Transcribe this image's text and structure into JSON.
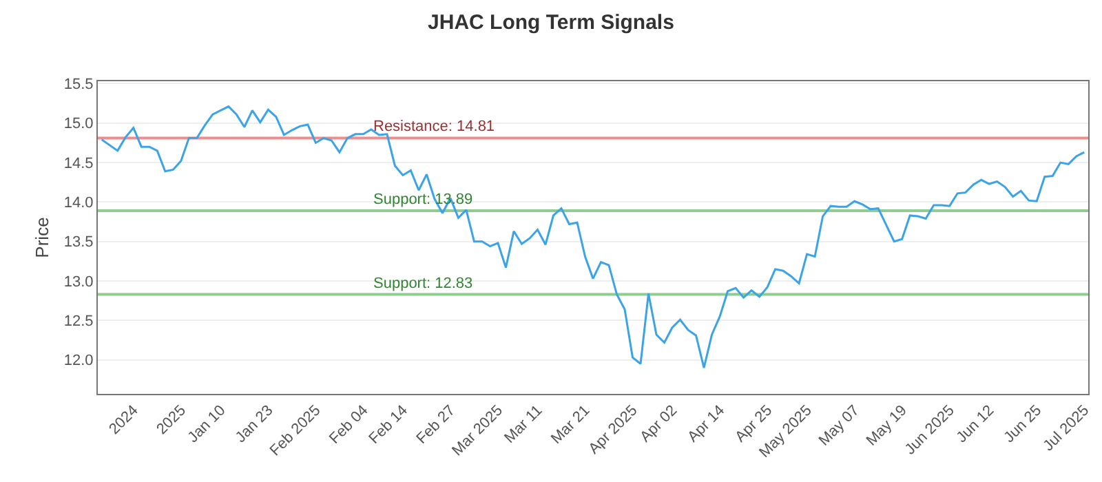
{
  "chart_data": {
    "type": "line",
    "title": "JHAC Long Term Signals",
    "ylabel": "Price",
    "categories": [
      null,
      null,
      null,
      null,
      "2024",
      null,
      null,
      null,
      null,
      null,
      "2025",
      null,
      null,
      null,
      null,
      "Jan 10",
      null,
      null,
      null,
      null,
      null,
      "Jan 23",
      null,
      null,
      null,
      null,
      null,
      "Feb 2025",
      null,
      null,
      null,
      null,
      null,
      "Feb 04",
      null,
      null,
      null,
      null,
      "Feb 14",
      null,
      null,
      null,
      null,
      null,
      "Feb 27",
      null,
      null,
      null,
      null,
      null,
      "Mar 2025",
      null,
      null,
      null,
      null,
      "Mar 11",
      null,
      null,
      null,
      null,
      null,
      "Mar 21",
      null,
      null,
      null,
      null,
      null,
      "Apr 2025",
      null,
      null,
      null,
      null,
      "Apr 02",
      null,
      null,
      null,
      null,
      null,
      "Apr 14",
      null,
      null,
      null,
      null,
      null,
      "Apr 25",
      null,
      null,
      null,
      null,
      "May 2025",
      null,
      null,
      null,
      null,
      null,
      "May 07",
      null,
      null,
      null,
      null,
      null,
      "May 19",
      null,
      null,
      null,
      null,
      null,
      "Jun 2025",
      null,
      null,
      null,
      null,
      "Jun 12",
      null,
      null,
      null,
      null,
      null,
      "Jun 25",
      null,
      null,
      null,
      null,
      null,
      "Jul 2025"
    ],
    "series": [
      {
        "color": "#3ba3e8",
        "values": [
          14.79,
          14.72,
          14.65,
          14.82,
          14.94,
          14.7,
          14.7,
          14.65,
          14.39,
          14.41,
          14.52,
          14.81,
          14.81,
          14.97,
          15.11,
          15.16,
          15.21,
          15.11,
          14.95,
          15.16,
          15.01,
          15.17,
          15.08,
          14.85,
          14.91,
          14.96,
          14.98,
          14.75,
          14.81,
          14.78,
          14.63,
          14.81,
          14.86,
          14.86,
          14.92,
          14.85,
          14.86,
          14.46,
          14.34,
          14.4,
          14.15,
          14.35,
          14.04,
          13.86,
          14.05,
          13.8,
          13.9,
          13.5,
          13.5,
          13.44,
          13.48,
          13.17,
          13.63,
          13.47,
          13.54,
          13.65,
          13.46,
          13.83,
          13.92,
          13.72,
          13.74,
          13.31,
          13.03,
          13.24,
          13.2,
          12.83,
          12.64,
          12.03,
          11.95,
          12.84,
          12.32,
          12.22,
          12.41,
          12.51,
          12.38,
          12.31,
          11.9,
          12.32,
          12.55,
          12.87,
          12.91,
          12.79,
          12.88,
          12.8,
          12.92,
          13.15,
          13.13,
          13.06,
          12.97,
          13.34,
          13.31,
          13.82,
          13.95,
          13.94,
          13.94,
          14.01,
          13.97,
          13.91,
          13.92,
          13.71,
          13.5,
          13.53,
          13.83,
          13.82,
          13.79,
          13.96,
          13.96,
          13.95,
          14.11,
          14.12,
          14.22,
          14.28,
          14.23,
          14.26,
          14.19,
          14.07,
          14.14,
          14.02,
          14.01,
          14.32,
          14.33,
          14.5,
          14.48,
          14.58,
          14.63
        ]
      }
    ],
    "ylim": [
      11.57,
      15.53
    ],
    "yticks": [
      {
        "value": 12,
        "label": "12.0"
      },
      12.5,
      {
        "value": 13,
        "label": "13.0"
      },
      13.5,
      {
        "value": 14,
        "label": "14.0"
      },
      14.5,
      {
        "value": 15,
        "label": "15.0"
      },
      15.5
    ],
    "grid": "y",
    "marker": "none",
    "line_style": "solid",
    "ref_lines": [
      {
        "axis": "y",
        "value": 14.81,
        "label": "Resistance: 14.81",
        "color": "#f08c8c"
      },
      {
        "axis": "y",
        "value": 13.89,
        "label": "Support: 13.89",
        "color": "#8fcc8f"
      },
      {
        "axis": "y",
        "value": 12.83,
        "label": "Support: 12.83",
        "color": "#8fcc8f"
      }
    ]
  }
}
